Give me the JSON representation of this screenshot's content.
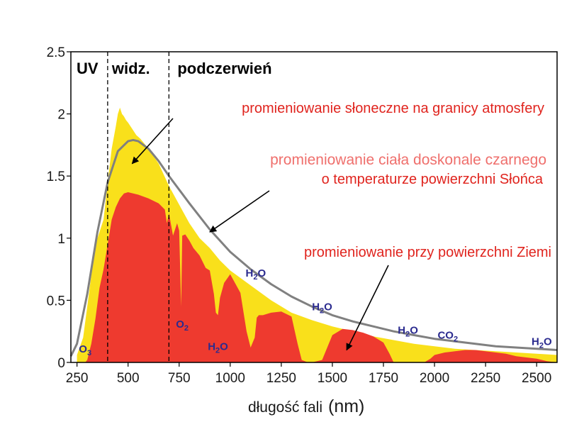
{
  "chart_data": {
    "type": "area",
    "title": "",
    "xlabel": "długość fali",
    "xunit": "(nm)",
    "ylabel": "",
    "xlim": [
      220,
      2600
    ],
    "ylim": [
      0,
      2.5
    ],
    "xticks": [
      250,
      500,
      750,
      1000,
      1250,
      1500,
      1750,
      2000,
      2250,
      2500
    ],
    "yticks": [
      0,
      0.5,
      1,
      1.5,
      2,
      2.5
    ],
    "grid": false,
    "regions": [
      {
        "label": "UV",
        "x_start": 220,
        "x_end": 400
      },
      {
        "label": "widz.",
        "x_start": 400,
        "x_end": 700
      },
      {
        "label": "podczerwień",
        "x_start": 700,
        "x_end": 2600
      }
    ],
    "dividers": [
      400,
      700
    ],
    "series": [
      {
        "name": "promieniowanie słoneczne na granicy atmosfery",
        "kind": "area",
        "color": "#f9e01b",
        "x": [
          250,
          280,
          300,
          320,
          340,
          360,
          380,
          400,
          420,
          440,
          450,
          460,
          470,
          480,
          490,
          500,
          520,
          540,
          560,
          580,
          600,
          650,
          700,
          750,
          800,
          850,
          900,
          950,
          1000,
          1100,
          1200,
          1300,
          1400,
          1500,
          1600,
          1700,
          1800,
          1900,
          2000,
          2100,
          2200,
          2300,
          2400,
          2500,
          2600
        ],
        "y": [
          0.06,
          0.2,
          0.45,
          0.7,
          0.95,
          1.05,
          1.15,
          1.45,
          1.72,
          1.9,
          2.0,
          2.05,
          2.0,
          1.98,
          1.95,
          1.93,
          1.88,
          1.83,
          1.8,
          1.76,
          1.72,
          1.6,
          1.42,
          1.27,
          1.12,
          1.0,
          0.92,
          0.82,
          0.74,
          0.62,
          0.5,
          0.4,
          0.34,
          0.29,
          0.25,
          0.21,
          0.18,
          0.15,
          0.13,
          0.11,
          0.1,
          0.09,
          0.08,
          0.07,
          0.06
        ]
      },
      {
        "name": "promieniowanie ciała doskonale czarnego o temperaturze powierzchni Słońca",
        "kind": "line",
        "color": "#808080",
        "x": [
          220,
          250,
          300,
          350,
          400,
          450,
          500,
          525,
          550,
          600,
          650,
          700,
          800,
          900,
          1000,
          1100,
          1200,
          1300,
          1400,
          1500,
          1600,
          1700,
          1800,
          1900,
          2000,
          2100,
          2200,
          2300,
          2400,
          2500,
          2600
        ],
        "y": [
          0.05,
          0.15,
          0.55,
          1.05,
          1.45,
          1.7,
          1.78,
          1.79,
          1.78,
          1.72,
          1.62,
          1.5,
          1.28,
          1.07,
          0.89,
          0.75,
          0.63,
          0.53,
          0.45,
          0.38,
          0.33,
          0.29,
          0.25,
          0.22,
          0.19,
          0.17,
          0.15,
          0.13,
          0.12,
          0.11,
          0.1
        ]
      },
      {
        "name": "promieniowanie przy powierzchni Ziemi",
        "kind": "area",
        "color": "#ee3a2f",
        "x": [
          290,
          300,
          320,
          340,
          360,
          380,
          400,
          420,
          440,
          460,
          480,
          500,
          550,
          600,
          650,
          680,
          690,
          700,
          720,
          740,
          750,
          760,
          765,
          780,
          800,
          820,
          850,
          880,
          900,
          920,
          930,
          940,
          950,
          970,
          1000,
          1050,
          1080,
          1100,
          1120,
          1130,
          1140,
          1160,
          1200,
          1250,
          1300,
          1330,
          1350,
          1380,
          1400,
          1450,
          1500,
          1550,
          1600,
          1650,
          1700,
          1750,
          1780,
          1800,
          1850,
          1900,
          1950,
          1980,
          2000,
          2050,
          2100,
          2150,
          2200,
          2250,
          2300,
          2350,
          2400,
          2450,
          2500,
          2550,
          2600
        ],
        "y": [
          0.0,
          0.02,
          0.15,
          0.35,
          0.6,
          0.75,
          0.95,
          1.15,
          1.25,
          1.32,
          1.36,
          1.37,
          1.35,
          1.32,
          1.28,
          1.23,
          1.12,
          1.2,
          1.02,
          1.12,
          1.06,
          0.45,
          1.02,
          1.03,
          0.98,
          0.92,
          0.86,
          0.76,
          0.74,
          0.55,
          0.4,
          0.38,
          0.52,
          0.64,
          0.71,
          0.56,
          0.25,
          0.12,
          0.2,
          0.36,
          0.38,
          0.38,
          0.4,
          0.41,
          0.37,
          0.15,
          0.02,
          0.0,
          0.0,
          0.02,
          0.22,
          0.27,
          0.26,
          0.24,
          0.21,
          0.16,
          0.07,
          0.0,
          0.0,
          0.0,
          0.0,
          0.03,
          0.06,
          0.08,
          0.09,
          0.1,
          0.1,
          0.09,
          0.08,
          0.07,
          0.05,
          0.04,
          0.03,
          0.01,
          0.0
        ]
      }
    ],
    "annotations": [
      {
        "text": "promieniowanie słoneczne na granicy atmosfery",
        "style": "red",
        "anchor": "end",
        "tx": 768,
        "ty": 159,
        "arrow_to": [
          520,
          1.6
        ]
      },
      {
        "text": "promieniowanie ciała doskonale czarnego",
        "style": "pink",
        "anchor": "end",
        "tx": 771,
        "ty": 232
      },
      {
        "text": "o temperaturze powierzchni Słońca",
        "style": "red",
        "anchor": "end",
        "tx": 766,
        "ty": 259,
        "arrow_to": [
          900,
          1.05
        ]
      },
      {
        "text": "promieniowanie przy powierzchni Ziemi",
        "style": "red",
        "anchor": "end",
        "tx": 778,
        "ty": 362,
        "arrow_to": [
          1570,
          0.1
        ]
      }
    ],
    "absorption_labels": [
      {
        "base": "O",
        "sub": "3",
        "x": 290,
        "y": 0.08
      },
      {
        "base": "O",
        "sub": "2",
        "x": 765,
        "y": 0.28
      },
      {
        "base": "H",
        "sub": "2",
        "rest": "O",
        "x": 940,
        "y": 0.1
      },
      {
        "base": "H",
        "sub": "2",
        "rest": "O",
        "x": 1125,
        "y": 0.69
      },
      {
        "base": "H",
        "sub": "2",
        "rest": "O",
        "x": 1450,
        "y": 0.42
      },
      {
        "base": "H",
        "sub": "2",
        "rest": "O",
        "x": 1870,
        "y": 0.23
      },
      {
        "base": "CO",
        "sub": "2",
        "x": 2065,
        "y": 0.19
      },
      {
        "base": "H",
        "sub": "2",
        "rest": "O",
        "x": 2525,
        "y": 0.14
      }
    ]
  },
  "colors": {
    "yellow_area": "#f9e01b",
    "red_area": "#ee3a2f",
    "blackbody_line": "#808080",
    "annotation_red": "#e0241e",
    "annotation_pink": "#ef6f6c",
    "gas_label": "#2b2b8f"
  }
}
